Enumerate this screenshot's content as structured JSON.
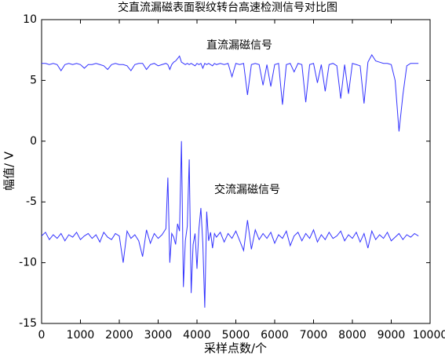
{
  "chart_data": {
    "type": "line",
    "title": "交直流漏磁表面裂纹转台高速检测信号对比图",
    "x_label": "采样点数/个",
    "y_label": "幅值/ V",
    "annotations": [
      "直流漏磁信号",
      "交流漏磁信号"
    ],
    "x": [
      0,
      100,
      200,
      300,
      400,
      500,
      600,
      700,
      800,
      900,
      1000,
      1100,
      1200,
      1300,
      1400,
      1500,
      1600,
      1700,
      1800,
      1900,
      2000,
      2100,
      2200,
      2300,
      2400,
      2500,
      2600,
      2700,
      2800,
      2900,
      3000,
      3100,
      3200,
      3250,
      3300,
      3350,
      3400,
      3450,
      3500,
      3550,
      3600,
      3650,
      3700,
      3750,
      3800,
      3850,
      3900,
      3950,
      4000,
      4050,
      4100,
      4150,
      4200,
      4250,
      4300,
      4350,
      4400,
      4450,
      4500,
      4600,
      4700,
      4800,
      4900,
      5000,
      5100,
      5200,
      5300,
      5400,
      5500,
      5600,
      5700,
      5800,
      5900,
      6000,
      6100,
      6200,
      6300,
      6400,
      6500,
      6600,
      6700,
      6800,
      6900,
      7000,
      7100,
      7200,
      7300,
      7400,
      7500,
      7600,
      7700,
      7800,
      7900,
      8000,
      8100,
      8200,
      8300,
      8400,
      8500,
      8600,
      8700,
      8800,
      8900,
      9000,
      9100,
      9200,
      9300,
      9400,
      9500,
      9600,
      9700
    ],
    "series": [
      {
        "color": "#3333ff",
        "values": [
          6.4,
          6.4,
          6.3,
          6.4,
          6.3,
          5.8,
          6.3,
          6.4,
          6.3,
          6.4,
          6.3,
          6.0,
          6.3,
          6.3,
          6.4,
          6.3,
          6.2,
          5.9,
          6.3,
          6.4,
          6.3,
          6.3,
          6.2,
          5.8,
          6.3,
          6.4,
          6.4,
          5.9,
          6.3,
          6.4,
          6.2,
          6.3,
          6.4,
          6.3,
          5.9,
          6.3,
          6.5,
          6.6,
          6.8,
          7.0,
          6.5,
          6.4,
          6.3,
          6.4,
          6.3,
          6.4,
          6.3,
          6.2,
          6.4,
          6.3,
          6.4,
          6.0,
          6.4,
          6.3,
          6.4,
          6.3,
          6.2,
          6.4,
          6.3,
          6.4,
          6.3,
          6.4,
          5.3,
          6.4,
          6.3,
          6.4,
          3.8,
          6.3,
          6.4,
          6.3,
          4.6,
          6.3,
          4.5,
          6.3,
          6.4,
          3.0,
          6.3,
          6.4,
          5.7,
          6.4,
          6.3,
          3.2,
          6.3,
          6.4,
          4.8,
          6.3,
          4.1,
          6.3,
          6.4,
          6.2,
          3.5,
          6.3,
          3.9,
          6.4,
          6.3,
          6.2,
          3.1,
          6.5,
          7.1,
          6.6,
          6.5,
          6.4,
          6.4,
          6.3,
          5.0,
          0.8,
          3.8,
          6.2,
          6.4,
          6.4,
          6.4
        ]
      },
      {
        "color": "#3333ff",
        "values": [
          -7.8,
          -7.5,
          -8.1,
          -7.7,
          -8.0,
          -7.6,
          -8.2,
          -7.7,
          -7.9,
          -7.5,
          -8.1,
          -7.8,
          -7.6,
          -8.0,
          -7.7,
          -8.3,
          -7.5,
          -7.9,
          -8.1,
          -7.6,
          -7.8,
          -10.0,
          -7.4,
          -8.0,
          -7.7,
          -8.2,
          -9.5,
          -7.3,
          -8.4,
          -7.6,
          -8.0,
          -7.7,
          -7.2,
          -3.0,
          -10.0,
          -7.6,
          -7.9,
          -8.5,
          -6.8,
          -7.4,
          0.0,
          -12.0,
          -8.2,
          -7.0,
          -1.5,
          -12.5,
          -8.5,
          -7.6,
          -10.5,
          -7.2,
          -5.5,
          -8.4,
          -13.7,
          -5.8,
          -8.2,
          -7.5,
          -8.8,
          -7.6,
          -7.9,
          -7.5,
          -8.3,
          -7.6,
          -8.0,
          -7.4,
          -8.2,
          -9.0,
          -6.5,
          -8.9,
          -7.3,
          -8.1,
          -7.6,
          -8.0,
          -7.5,
          -8.4,
          -7.7,
          -8.0,
          -7.4,
          -8.6,
          -7.8,
          -7.5,
          -8.2,
          -7.6,
          -8.0,
          -7.3,
          -8.3,
          -7.7,
          -8.1,
          -7.5,
          -8.0,
          -7.8,
          -7.4,
          -8.2,
          -7.7,
          -8.0,
          -7.5,
          -8.3,
          -7.6,
          -8.8,
          -7.4,
          -8.1,
          -7.7,
          -8.0,
          -7.5,
          -8.2,
          -7.9,
          -7.6,
          -8.1,
          -7.7,
          -7.9,
          -7.6,
          -7.8
        ]
      }
    ],
    "xlim": [
      0,
      10000
    ],
    "xticks": [
      0,
      1000,
      2000,
      3000,
      4000,
      5000,
      6000,
      7000,
      8000,
      9000,
      10000
    ],
    "ylim": [
      -15,
      10
    ],
    "yticks": [
      -15,
      -10,
      -5,
      0,
      5,
      10
    ],
    "grid": false
  }
}
